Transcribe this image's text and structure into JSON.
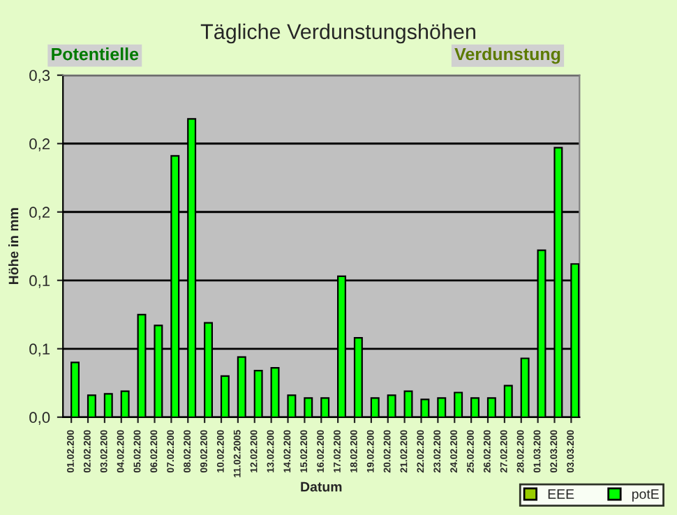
{
  "chart_data": {
    "type": "bar",
    "title": "Tägliche Verdunstungshöhen",
    "annotations": [
      "Potentielle",
      "Verdunstung"
    ],
    "xlabel": "Datum",
    "ylabel": "Höhe in mm",
    "categories": [
      "01.02.200",
      "02.02.200",
      "03.02.200",
      "04.02.200",
      "05.02.200",
      "06.02.200",
      "07.02.200",
      "08.02.200",
      "09.02.200",
      "10.02.200",
      "11.02.2005",
      "12.02.200",
      "13.02.200",
      "14.02.200",
      "15.02.200",
      "16.02.200",
      "17.02.200",
      "18.02.200",
      "19.02.200",
      "20.02.200",
      "21.02.200",
      "22.02.200",
      "23.02.200",
      "24.02.200",
      "25.02.200",
      "26.02.200",
      "27.02.200",
      "28.02.200",
      "01.03.200",
      "02.03.200",
      "03.03.200"
    ],
    "series": [
      {
        "name": "EEE",
        "color": "#99cc00",
        "values": [
          null,
          null,
          null,
          null,
          null,
          null,
          null,
          null,
          null,
          null,
          null,
          null,
          null,
          null,
          null,
          null,
          null,
          null,
          null,
          null,
          null,
          null,
          null,
          null,
          null,
          null,
          null,
          null,
          null,
          null,
          null
        ]
      },
      {
        "name": "potE",
        "color": "#00ff00",
        "values": [
          0.04,
          0.016,
          0.017,
          0.019,
          0.075,
          0.067,
          0.191,
          0.218,
          0.069,
          0.03,
          0.044,
          0.034,
          0.036,
          0.016,
          0.014,
          0.014,
          0.103,
          0.058,
          0.014,
          0.016,
          0.019,
          0.013,
          0.014,
          0.018,
          0.014,
          0.014,
          0.023,
          0.043,
          0.122,
          0.197,
          0.112
        ]
      }
    ],
    "ylim": [
      0,
      0.25
    ],
    "yticks": [
      {
        "value": 0,
        "label": "0,0"
      },
      {
        "value": 0.05,
        "label": "0,1"
      },
      {
        "value": 0.1,
        "label": "0,1"
      },
      {
        "value": 0.15,
        "label": "0,2"
      },
      {
        "value": 0.2,
        "label": "0,2"
      },
      {
        "value": 0.25,
        "label": "0,3"
      }
    ],
    "grid": "y",
    "legend": "bottom right"
  }
}
